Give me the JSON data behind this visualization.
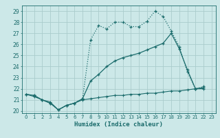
{
  "xlabel": "Humidex (Indice chaleur)",
  "bg_color": "#cce8e8",
  "grid_color": "#aacccc",
  "line_color": "#1a6b6b",
  "xlim": [
    -0.5,
    23.5
  ],
  "ylim": [
    19.8,
    29.5
  ],
  "yticks": [
    20,
    21,
    22,
    23,
    24,
    25,
    26,
    27,
    28,
    29
  ],
  "xticks": [
    0,
    1,
    2,
    3,
    4,
    5,
    6,
    7,
    8,
    9,
    10,
    11,
    12,
    13,
    14,
    15,
    16,
    17,
    18,
    19,
    20,
    21,
    22,
    23
  ],
  "line1_x": [
    0,
    1,
    2,
    3,
    4,
    5,
    6,
    7,
    8,
    9,
    10,
    11,
    12,
    13,
    14,
    15,
    16,
    17,
    18,
    19,
    20,
    21,
    22
  ],
  "line1_y": [
    21.5,
    21.4,
    21.0,
    20.7,
    20.1,
    20.5,
    20.7,
    21.1,
    26.4,
    27.7,
    27.4,
    28.0,
    28.0,
    27.6,
    27.6,
    28.1,
    29.0,
    28.5,
    27.2,
    25.8,
    23.5,
    22.0,
    22.2
  ],
  "line2_x": [
    0,
    1,
    2,
    3,
    4,
    5,
    6,
    7,
    8,
    9,
    10,
    11,
    12,
    13,
    14,
    15,
    16,
    17,
    18,
    19,
    20,
    21,
    22
  ],
  "line2_y": [
    21.5,
    21.4,
    21.0,
    20.7,
    20.1,
    20.5,
    20.7,
    21.1,
    22.7,
    23.3,
    24.0,
    24.5,
    24.8,
    25.0,
    25.2,
    25.5,
    25.8,
    26.1,
    27.0,
    25.6,
    23.7,
    22.0,
    22.1
  ],
  "line3_x": [
    0,
    1,
    2,
    3,
    4,
    5,
    6,
    7,
    8,
    9,
    10,
    11,
    12,
    13,
    14,
    15,
    16,
    17,
    18,
    19,
    20,
    21,
    22
  ],
  "line3_y": [
    21.5,
    21.3,
    21.0,
    20.8,
    20.1,
    20.5,
    20.7,
    21.0,
    21.1,
    21.2,
    21.3,
    21.4,
    21.4,
    21.5,
    21.5,
    21.6,
    21.6,
    21.7,
    21.8,
    21.8,
    21.9,
    22.0,
    22.0
  ]
}
